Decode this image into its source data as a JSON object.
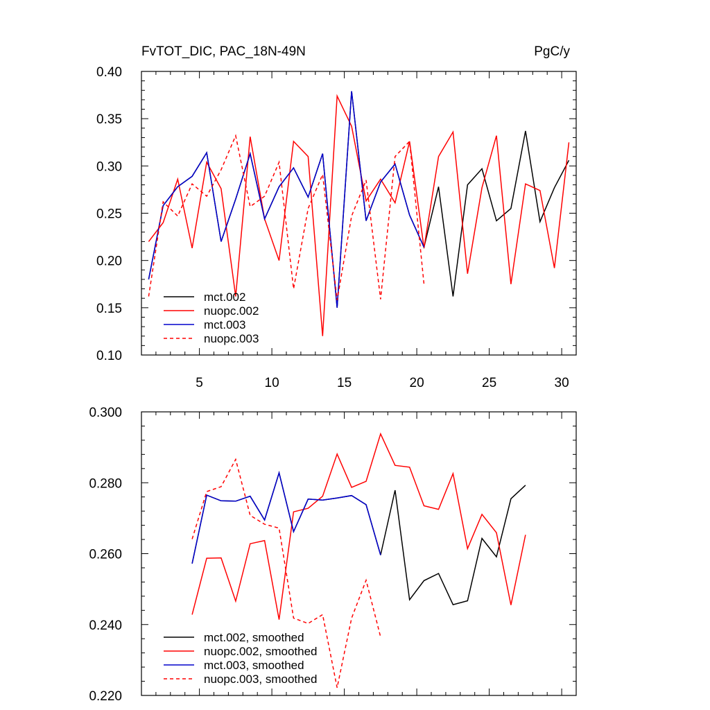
{
  "chart_data": [
    {
      "type": "line",
      "title": "FvTOT_DIC, PAC_18N-49N",
      "unit_label": "PgC/y",
      "xlim": [
        1,
        31
      ],
      "ylim": [
        0.1,
        0.4
      ],
      "xticks": [
        5,
        10,
        15,
        20,
        25,
        30
      ],
      "xticklabels": [
        "5",
        "10",
        "15",
        "20",
        "25",
        "30"
      ],
      "yticks": [
        0.1,
        0.15,
        0.2,
        0.25,
        0.3,
        0.35,
        0.4
      ],
      "yticklabels": [
        "0.10",
        "0.15",
        "0.20",
        "0.25",
        "0.30",
        "0.35",
        "0.40"
      ],
      "legend_position": "bottom-left",
      "series": [
        {
          "name": "mct.002",
          "color": "#000000",
          "dash": "solid",
          "x": [
            1.5,
            2.5,
            3.5,
            4.5,
            5.5,
            6.5,
            7.5,
            8.5,
            9.5,
            10.5,
            11.5,
            12.5,
            13.5,
            14.5,
            15.5,
            16.5,
            17.5,
            18.5,
            19.5,
            20.5,
            21.5,
            22.5,
            23.5,
            24.5,
            25.5,
            26.5,
            27.5,
            28.5,
            29.5,
            30.5
          ],
          "y": [
            0.18,
            0.258,
            0.278,
            0.289,
            0.314,
            0.22,
            0.265,
            0.313,
            0.244,
            0.278,
            0.298,
            0.267,
            0.313,
            0.15,
            0.379,
            0.242,
            0.283,
            0.302,
            0.248,
            0.214,
            0.278,
            0.162,
            0.28,
            0.297,
            0.242,
            0.255,
            0.337,
            0.241,
            0.277,
            0.306
          ]
        },
        {
          "name": "nuopc.002",
          "color": "#ff0000",
          "dash": "solid",
          "x": [
            1.5,
            2.5,
            3.5,
            4.5,
            5.5,
            6.5,
            7.5,
            8.5,
            9.5,
            10.5,
            11.5,
            12.5,
            13.5,
            14.5,
            15.5,
            16.5,
            17.5,
            18.5,
            19.5,
            20.5,
            21.5,
            22.5,
            23.5,
            24.5,
            25.5,
            26.5,
            27.5,
            28.5,
            29.5,
            30.5
          ],
          "y": [
            0.22,
            0.24,
            0.286,
            0.213,
            0.304,
            0.276,
            0.162,
            0.331,
            0.244,
            0.2,
            0.326,
            0.31,
            0.12,
            0.374,
            0.342,
            0.263,
            0.286,
            0.261,
            0.326,
            0.213,
            0.31,
            0.336,
            0.186,
            0.277,
            0.332,
            0.175,
            0.281,
            0.274,
            0.192,
            0.325
          ]
        },
        {
          "name": "mct.003",
          "color": "#0000cc",
          "dash": "solid",
          "x": [
            1.5,
            2.5,
            3.5,
            4.5,
            5.5,
            6.5,
            7.5,
            8.5,
            9.5,
            10.5,
            11.5,
            12.5,
            13.5,
            14.5,
            15.5,
            16.5,
            17.5,
            18.5,
            19.5,
            20.5
          ],
          "y": [
            0.18,
            0.258,
            0.278,
            0.289,
            0.314,
            0.22,
            0.265,
            0.313,
            0.244,
            0.278,
            0.298,
            0.267,
            0.313,
            0.15,
            0.379,
            0.242,
            0.283,
            0.302,
            0.248,
            0.214
          ]
        },
        {
          "name": "nuopc.003",
          "color": "#ff0000",
          "dash": "dashed",
          "x": [
            1.5,
            2.5,
            3.5,
            4.5,
            5.5,
            6.5,
            7.5,
            8.5,
            9.5,
            10.5,
            11.5,
            12.5,
            13.5,
            14.5,
            15.5,
            16.5,
            17.5,
            18.5,
            19.5,
            20.5
          ],
          "y": [
            0.162,
            0.262,
            0.247,
            0.281,
            0.268,
            0.296,
            0.332,
            0.257,
            0.268,
            0.304,
            0.17,
            0.255,
            0.291,
            0.158,
            0.247,
            0.285,
            0.159,
            0.31,
            0.326,
            0.175
          ]
        }
      ]
    },
    {
      "type": "line",
      "xlim": [
        1,
        31
      ],
      "ylim": [
        0.22,
        0.3
      ],
      "xticks": [
        5,
        10,
        15,
        20,
        25,
        30
      ],
      "yticks": [
        0.22,
        0.24,
        0.26,
        0.28,
        0.3
      ],
      "yticklabels": [
        "0.220",
        "0.240",
        "0.260",
        "0.280",
        "0.300"
      ],
      "legend_position": "bottom-left",
      "series": [
        {
          "name": "mct.002, smoothed",
          "color": "#000000",
          "dash": "solid",
          "x": [
            4.5,
            5.5,
            6.5,
            7.5,
            8.5,
            9.5,
            10.5,
            11.5,
            12.5,
            13.5,
            14.5,
            15.5,
            16.5,
            17.5,
            18.5,
            19.5,
            20.5,
            21.5,
            22.5,
            23.5,
            24.5,
            25.5,
            26.5,
            27.5
          ],
          "y": [
            0.2572,
            0.2765,
            0.2749,
            0.2748,
            0.2762,
            0.2695,
            0.2828,
            0.2662,
            0.2754,
            0.2751,
            0.2757,
            0.2764,
            0.2738,
            0.2596,
            0.2779,
            0.247,
            0.2524,
            0.2544,
            0.2456,
            0.2467,
            0.2643,
            0.2591,
            0.2755,
            0.2793
          ]
        },
        {
          "name": "nuopc.002, smoothed",
          "color": "#ff0000",
          "dash": "solid",
          "x": [
            4.5,
            5.5,
            6.5,
            7.5,
            8.5,
            9.5,
            10.5,
            11.5,
            12.5,
            13.5,
            14.5,
            15.5,
            16.5,
            17.5,
            18.5,
            19.5,
            20.5,
            21.5,
            22.5,
            23.5,
            24.5,
            25.5,
            26.5,
            27.5
          ],
          "y": [
            0.2428,
            0.2587,
            0.2588,
            0.2466,
            0.2628,
            0.2637,
            0.2414,
            0.2718,
            0.2728,
            0.2762,
            0.2881,
            0.2787,
            0.2804,
            0.2938,
            0.2849,
            0.2844,
            0.2735,
            0.2725,
            0.2826,
            0.2614,
            0.2711,
            0.2659,
            0.2455,
            0.2653
          ]
        },
        {
          "name": "mct.003, smoothed",
          "color": "#0000cc",
          "dash": "solid",
          "x": [
            4.5,
            5.5,
            6.5,
            7.5,
            8.5,
            9.5,
            10.5,
            11.5,
            12.5,
            13.5,
            14.5,
            15.5,
            16.5,
            17.5
          ],
          "y": [
            0.2572,
            0.2765,
            0.2749,
            0.2748,
            0.2762,
            0.2695,
            0.2828,
            0.2662,
            0.2754,
            0.2751,
            0.2757,
            0.2764,
            0.2738,
            0.2596
          ]
        },
        {
          "name": "nuopc.003, smoothed",
          "color": "#ff0000",
          "dash": "dashed",
          "x": [
            4.5,
            5.5,
            6.5,
            7.5,
            8.5,
            9.5,
            10.5,
            11.5,
            12.5,
            13.5,
            14.5,
            15.5,
            16.5,
            17.5
          ],
          "y": [
            0.2641,
            0.2775,
            0.2789,
            0.2866,
            0.2708,
            0.2683,
            0.2672,
            0.2418,
            0.2403,
            0.2428,
            0.2222,
            0.2418,
            0.2525,
            0.2365
          ]
        }
      ]
    }
  ]
}
